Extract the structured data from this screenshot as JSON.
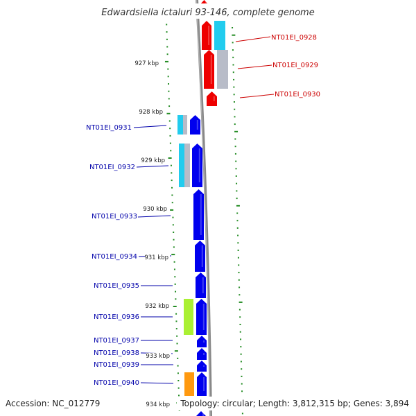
{
  "title": "Edwardsiella ictaluri 93-146, complete genome",
  "footer": {
    "accession": "Accession: NC_012779",
    "summary": "Topology: circular; Length: 3,812,315 bp; Genes: 3,894"
  },
  "colors": {
    "forward_genes": "#0000ee",
    "reverse_genes": "#ee0000",
    "ticks": "#228b22",
    "backbone": "#888888",
    "cog_cyan": "#22ccee",
    "cog_gray": "#b8bcc8",
    "cog_green": "#aaf033",
    "cog_orange": "#ff9910"
  },
  "kbp_ticks": [
    "927 kbp",
    "928 kbp",
    "929 kbp",
    "930 kbp",
    "931 kbp",
    "932 kbp",
    "933 kbp",
    "934 kbp"
  ],
  "genes": [
    {
      "label": "NT01EI_0928",
      "strand": "reverse"
    },
    {
      "label": "NT01EI_0929",
      "strand": "reverse"
    },
    {
      "label": "NT01EI_0930",
      "strand": "reverse"
    },
    {
      "label": "NT01EI_0931",
      "strand": "forward"
    },
    {
      "label": "NT01EI_0932",
      "strand": "forward"
    },
    {
      "label": "NT01EI_0933",
      "strand": "forward"
    },
    {
      "label": "NT01EI_0934",
      "strand": "forward"
    },
    {
      "label": "NT01EI_0935",
      "strand": "forward"
    },
    {
      "label": "NT01EI_0936",
      "strand": "forward"
    },
    {
      "label": "NT01EI_0937",
      "strand": "forward"
    },
    {
      "label": "NT01EI_0938",
      "strand": "forward"
    },
    {
      "label": "NT01EI_0939",
      "strand": "forward"
    },
    {
      "label": "NT01EI_0940",
      "strand": "forward"
    }
  ]
}
